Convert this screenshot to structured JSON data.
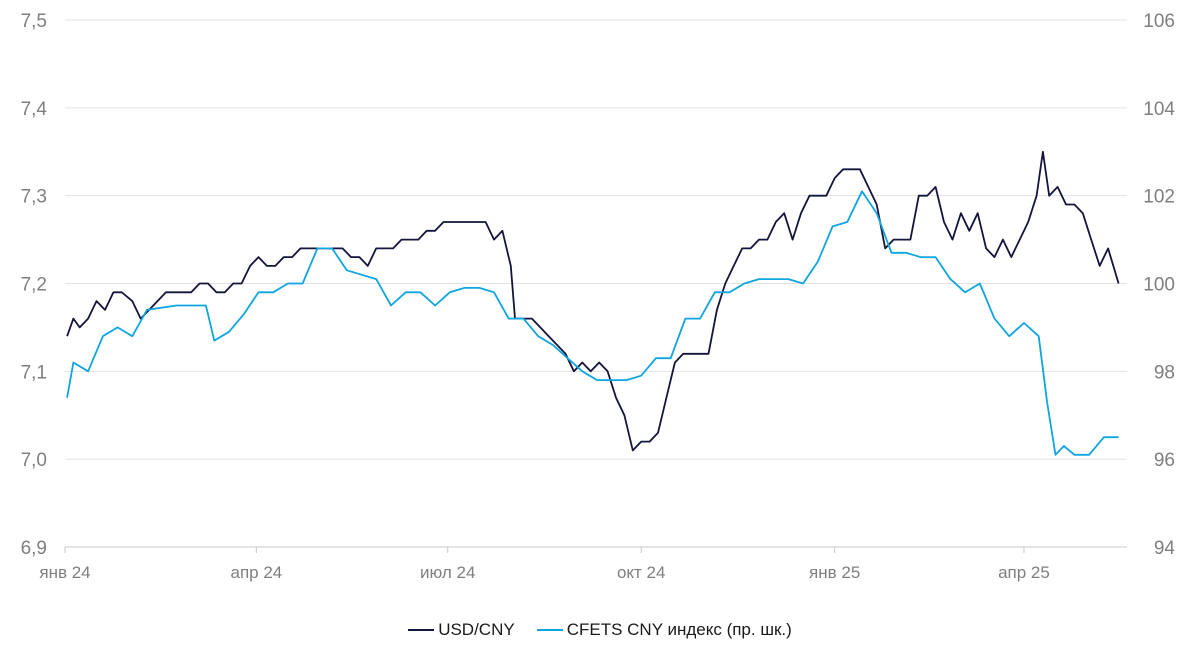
{
  "chart_data": {
    "type": "line",
    "x_ticks": [
      "янв 24",
      "апр 24",
      "июл 24",
      "окт 24",
      "янв 25",
      "апр 25"
    ],
    "y_left": {
      "ticks": [
        "6,9",
        "7,0",
        "7,1",
        "7,2",
        "7,3",
        "7,4",
        "7,5"
      ],
      "range": [
        6.9,
        7.5
      ]
    },
    "y_right": {
      "ticks": [
        "94",
        "96",
        "98",
        "100",
        "102",
        "104",
        "106"
      ],
      "range": [
        94,
        106
      ]
    },
    "grid": "horizontal",
    "legend_position": "bottom",
    "series": [
      {
        "name": "USD/CNY",
        "axis": "left",
        "color": "#14143c",
        "points": [
          [
            "2024-01-02",
            7.14
          ],
          [
            "2024-01-05",
            7.16
          ],
          [
            "2024-01-08",
            7.15
          ],
          [
            "2024-01-12",
            7.16
          ],
          [
            "2024-01-16",
            7.18
          ],
          [
            "2024-01-20",
            7.17
          ],
          [
            "2024-01-24",
            7.19
          ],
          [
            "2024-01-28",
            7.19
          ],
          [
            "2024-02-02",
            7.18
          ],
          [
            "2024-02-06",
            7.16
          ],
          [
            "2024-02-10",
            7.17
          ],
          [
            "2024-02-14",
            7.18
          ],
          [
            "2024-02-18",
            7.19
          ],
          [
            "2024-02-22",
            7.19
          ],
          [
            "2024-02-26",
            7.19
          ],
          [
            "2024-03-01",
            7.19
          ],
          [
            "2024-03-05",
            7.2
          ],
          [
            "2024-03-09",
            7.2
          ],
          [
            "2024-03-13",
            7.19
          ],
          [
            "2024-03-17",
            7.19
          ],
          [
            "2024-03-21",
            7.2
          ],
          [
            "2024-03-25",
            7.2
          ],
          [
            "2024-03-29",
            7.22
          ],
          [
            "2024-04-02",
            7.23
          ],
          [
            "2024-04-06",
            7.22
          ],
          [
            "2024-04-10",
            7.22
          ],
          [
            "2024-04-14",
            7.23
          ],
          [
            "2024-04-18",
            7.23
          ],
          [
            "2024-04-22",
            7.24
          ],
          [
            "2024-04-26",
            7.24
          ],
          [
            "2024-04-30",
            7.24
          ],
          [
            "2024-05-04",
            7.24
          ],
          [
            "2024-05-08",
            7.24
          ],
          [
            "2024-05-12",
            7.24
          ],
          [
            "2024-05-16",
            7.23
          ],
          [
            "2024-05-20",
            7.23
          ],
          [
            "2024-05-24",
            7.22
          ],
          [
            "2024-05-28",
            7.24
          ],
          [
            "2024-06-01",
            7.24
          ],
          [
            "2024-06-05",
            7.24
          ],
          [
            "2024-06-09",
            7.25
          ],
          [
            "2024-06-13",
            7.25
          ],
          [
            "2024-06-17",
            7.25
          ],
          [
            "2024-06-21",
            7.26
          ],
          [
            "2024-06-25",
            7.26
          ],
          [
            "2024-06-29",
            7.27
          ],
          [
            "2024-07-03",
            7.27
          ],
          [
            "2024-07-07",
            7.27
          ],
          [
            "2024-07-11",
            7.27
          ],
          [
            "2024-07-15",
            7.27
          ],
          [
            "2024-07-19",
            7.27
          ],
          [
            "2024-07-23",
            7.25
          ],
          [
            "2024-07-27",
            7.26
          ],
          [
            "2024-07-31",
            7.22
          ],
          [
            "2024-08-02",
            7.16
          ],
          [
            "2024-08-06",
            7.16
          ],
          [
            "2024-08-10",
            7.16
          ],
          [
            "2024-08-14",
            7.15
          ],
          [
            "2024-08-18",
            7.14
          ],
          [
            "2024-08-22",
            7.13
          ],
          [
            "2024-08-26",
            7.12
          ],
          [
            "2024-08-30",
            7.1
          ],
          [
            "2024-09-03",
            7.11
          ],
          [
            "2024-09-07",
            7.1
          ],
          [
            "2024-09-11",
            7.11
          ],
          [
            "2024-09-15",
            7.1
          ],
          [
            "2024-09-19",
            7.07
          ],
          [
            "2024-09-23",
            7.05
          ],
          [
            "2024-09-27",
            7.01
          ],
          [
            "2024-10-01",
            7.02
          ],
          [
            "2024-10-05",
            7.02
          ],
          [
            "2024-10-09",
            7.03
          ],
          [
            "2024-10-13",
            7.07
          ],
          [
            "2024-10-17",
            7.11
          ],
          [
            "2024-10-21",
            7.12
          ],
          [
            "2024-10-25",
            7.12
          ],
          [
            "2024-10-29",
            7.12
          ],
          [
            "2024-11-02",
            7.12
          ],
          [
            "2024-11-06",
            7.17
          ],
          [
            "2024-11-10",
            7.2
          ],
          [
            "2024-11-14",
            7.22
          ],
          [
            "2024-11-18",
            7.24
          ],
          [
            "2024-11-22",
            7.24
          ],
          [
            "2024-11-26",
            7.25
          ],
          [
            "2024-11-30",
            7.25
          ],
          [
            "2024-12-04",
            7.27
          ],
          [
            "2024-12-08",
            7.28
          ],
          [
            "2024-12-12",
            7.25
          ],
          [
            "2024-12-16",
            7.28
          ],
          [
            "2024-12-20",
            7.3
          ],
          [
            "2024-12-24",
            7.3
          ],
          [
            "2024-12-28",
            7.3
          ],
          [
            "2025-01-01",
            7.32
          ],
          [
            "2025-01-05",
            7.33
          ],
          [
            "2025-01-09",
            7.33
          ],
          [
            "2025-01-13",
            7.33
          ],
          [
            "2025-01-17",
            7.31
          ],
          [
            "2025-01-21",
            7.29
          ],
          [
            "2025-01-25",
            7.24
          ],
          [
            "2025-01-29",
            7.25
          ],
          [
            "2025-02-02",
            7.25
          ],
          [
            "2025-02-06",
            7.25
          ],
          [
            "2025-02-10",
            7.3
          ],
          [
            "2025-02-14",
            7.3
          ],
          [
            "2025-02-18",
            7.31
          ],
          [
            "2025-02-22",
            7.27
          ],
          [
            "2025-02-26",
            7.25
          ],
          [
            "2025-03-02",
            7.28
          ],
          [
            "2025-03-06",
            7.26
          ],
          [
            "2025-03-10",
            7.28
          ],
          [
            "2025-03-14",
            7.24
          ],
          [
            "2025-03-18",
            7.23
          ],
          [
            "2025-03-22",
            7.25
          ],
          [
            "2025-03-26",
            7.23
          ],
          [
            "2025-03-30",
            7.25
          ],
          [
            "2025-04-03",
            7.27
          ],
          [
            "2025-04-07",
            7.3
          ],
          [
            "2025-04-10",
            7.35
          ],
          [
            "2025-04-13",
            7.3
          ],
          [
            "2025-04-17",
            7.31
          ],
          [
            "2025-04-21",
            7.29
          ],
          [
            "2025-04-25",
            7.29
          ],
          [
            "2025-04-29",
            7.28
          ],
          [
            "2025-05-03",
            7.25
          ],
          [
            "2025-05-07",
            7.22
          ],
          [
            "2025-05-11",
            7.24
          ],
          [
            "2025-05-16",
            7.2
          ]
        ]
      },
      {
        "name": "CFETS CNY индекс (пр. шк.)",
        "axis": "right",
        "color": "#0ea5e0",
        "points": [
          [
            "2024-01-02",
            97.4
          ],
          [
            "2024-01-05",
            98.2
          ],
          [
            "2024-01-12",
            98.0
          ],
          [
            "2024-01-19",
            98.8
          ],
          [
            "2024-01-26",
            99.0
          ],
          [
            "2024-02-02",
            98.8
          ],
          [
            "2024-02-09",
            99.4
          ],
          [
            "2024-02-23",
            99.5
          ],
          [
            "2024-03-08",
            99.5
          ],
          [
            "2024-03-12",
            98.7
          ],
          [
            "2024-03-19",
            98.9
          ],
          [
            "2024-03-26",
            99.3
          ],
          [
            "2024-04-02",
            99.8
          ],
          [
            "2024-04-09",
            99.8
          ],
          [
            "2024-04-16",
            100.0
          ],
          [
            "2024-04-23",
            100.0
          ],
          [
            "2024-04-30",
            100.8
          ],
          [
            "2024-05-07",
            100.8
          ],
          [
            "2024-05-14",
            100.3
          ],
          [
            "2024-05-21",
            100.2
          ],
          [
            "2024-05-28",
            100.1
          ],
          [
            "2024-06-04",
            99.5
          ],
          [
            "2024-06-11",
            99.8
          ],
          [
            "2024-06-18",
            99.8
          ],
          [
            "2024-06-25",
            99.5
          ],
          [
            "2024-07-02",
            99.8
          ],
          [
            "2024-07-09",
            99.9
          ],
          [
            "2024-07-16",
            99.9
          ],
          [
            "2024-07-23",
            99.8
          ],
          [
            "2024-07-30",
            99.2
          ],
          [
            "2024-08-06",
            99.2
          ],
          [
            "2024-08-13",
            98.8
          ],
          [
            "2024-08-20",
            98.6
          ],
          [
            "2024-08-27",
            98.3
          ],
          [
            "2024-09-03",
            98.0
          ],
          [
            "2024-09-10",
            97.8
          ],
          [
            "2024-09-17",
            97.8
          ],
          [
            "2024-09-24",
            97.8
          ],
          [
            "2024-10-01",
            97.9
          ],
          [
            "2024-10-08",
            98.3
          ],
          [
            "2024-10-15",
            98.3
          ],
          [
            "2024-10-22",
            99.2
          ],
          [
            "2024-10-29",
            99.2
          ],
          [
            "2024-11-05",
            99.8
          ],
          [
            "2024-11-12",
            99.8
          ],
          [
            "2024-11-19",
            100.0
          ],
          [
            "2024-11-26",
            100.1
          ],
          [
            "2024-12-03",
            100.1
          ],
          [
            "2024-12-10",
            100.1
          ],
          [
            "2024-12-17",
            100.0
          ],
          [
            "2024-12-24",
            100.5
          ],
          [
            "2024-12-31",
            101.3
          ],
          [
            "2025-01-07",
            101.4
          ],
          [
            "2025-01-14",
            102.1
          ],
          [
            "2025-01-21",
            101.6
          ],
          [
            "2025-01-28",
            100.7
          ],
          [
            "2025-02-04",
            100.7
          ],
          [
            "2025-02-11",
            100.6
          ],
          [
            "2025-02-18",
            100.6
          ],
          [
            "2025-02-25",
            100.1
          ],
          [
            "2025-03-04",
            99.8
          ],
          [
            "2025-03-11",
            100.0
          ],
          [
            "2025-03-18",
            99.2
          ],
          [
            "2025-03-25",
            98.8
          ],
          [
            "2025-04-01",
            99.1
          ],
          [
            "2025-04-08",
            98.8
          ],
          [
            "2025-04-12",
            97.3
          ],
          [
            "2025-04-16",
            96.1
          ],
          [
            "2025-04-20",
            96.3
          ],
          [
            "2025-04-25",
            96.1
          ],
          [
            "2025-05-02",
            96.1
          ],
          [
            "2025-05-09",
            96.5
          ],
          [
            "2025-05-16",
            96.5
          ]
        ]
      }
    ]
  }
}
